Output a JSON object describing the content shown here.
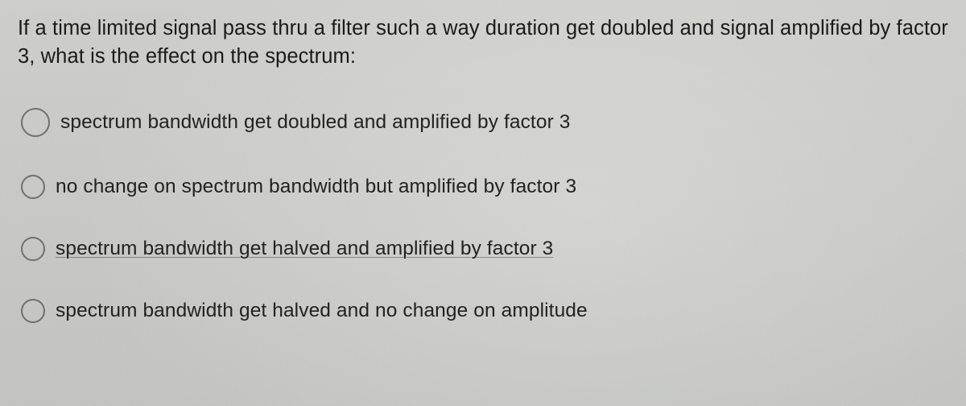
{
  "text_color": "#222222",
  "background_color": "#c9cac6",
  "radio_border_color": "#707070",
  "question": "If a time limited signal pass thru a filter such a way duration get doubled and signal amplified by factor 3, what is the effect on the spectrum:",
  "options": [
    {
      "label": "spectrum bandwidth get doubled and amplified by factor 3",
      "selected": false
    },
    {
      "label": "no change on spectrum bandwidth but amplified by factor 3",
      "selected": false
    },
    {
      "label": "spectrum bandwidth get halved and amplified by factor 3",
      "selected": false
    },
    {
      "label": "spectrum bandwidth get halved and no change on amplitude",
      "selected": false
    }
  ]
}
